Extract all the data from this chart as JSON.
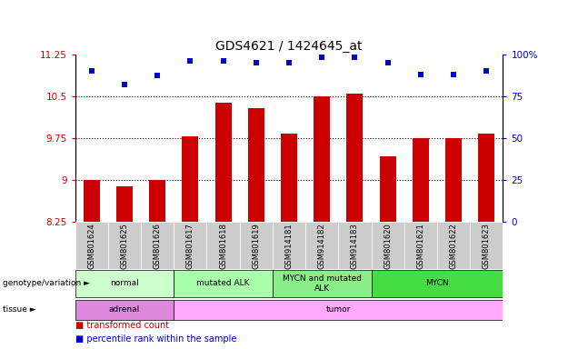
{
  "title": "GDS4621 / 1424645_at",
  "samples": [
    "GSM801624",
    "GSM801625",
    "GSM801626",
    "GSM801617",
    "GSM801618",
    "GSM801619",
    "GSM914181",
    "GSM914182",
    "GSM914183",
    "GSM801620",
    "GSM801621",
    "GSM801622",
    "GSM801623"
  ],
  "bar_values": [
    9.0,
    8.88,
    9.0,
    9.78,
    10.38,
    10.28,
    9.82,
    10.5,
    10.55,
    9.42,
    9.75,
    9.75,
    9.82
  ],
  "dot_values": [
    90,
    82,
    87,
    96,
    96,
    95,
    95,
    98,
    98,
    95,
    88,
    88,
    90
  ],
  "ylim_left": [
    8.25,
    11.25
  ],
  "ylim_right": [
    0,
    100
  ],
  "yticks_left": [
    8.25,
    9.0,
    9.75,
    10.5,
    11.25
  ],
  "yticks_left_labels": [
    "8.25",
    "9",
    "9.75",
    "10.5",
    "11.25"
  ],
  "yticks_right": [
    0,
    25,
    50,
    75,
    100
  ],
  "yticks_right_labels": [
    "0",
    "25",
    "50",
    "75",
    "100%"
  ],
  "hlines": [
    9.0,
    9.75,
    10.5
  ],
  "bar_color": "#cc0000",
  "dot_color": "#0000cc",
  "bar_width": 0.5,
  "background_color": "#ffffff",
  "xtick_bg_color": "#d0d0d0",
  "genotype_groups": [
    {
      "label": "normal",
      "start": 0,
      "end": 3,
      "color": "#ccffcc"
    },
    {
      "label": "mutated ALK",
      "start": 3,
      "end": 6,
      "color": "#aaffaa"
    },
    {
      "label": "MYCN and mutated\nALK",
      "start": 6,
      "end": 9,
      "color": "#88ee88"
    },
    {
      "label": "MYCN",
      "start": 9,
      "end": 13,
      "color": "#44dd44"
    }
  ],
  "tissue_groups": [
    {
      "label": "adrenal",
      "start": 0,
      "end": 3,
      "color": "#dd88dd"
    },
    {
      "label": "tumor",
      "start": 3,
      "end": 13,
      "color": "#ffaaff"
    }
  ],
  "ylabel_left_color": "#cc0000",
  "ylabel_right_color": "#0000cc",
  "title_fontsize": 10
}
